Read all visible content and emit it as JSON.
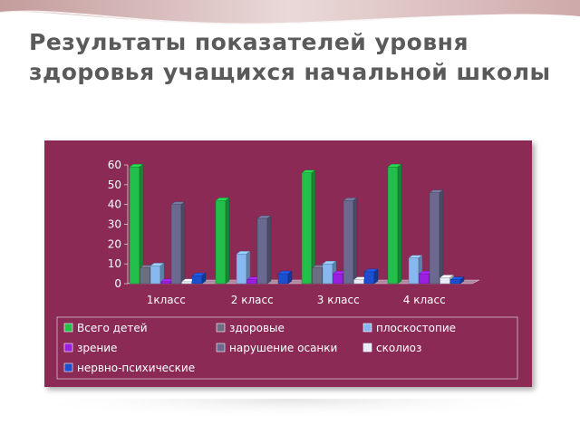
{
  "slide": {
    "title": "Результаты  показателей уровня здоровья учащихся начальной школы"
  },
  "colors": {
    "panel": "#8a2a55",
    "title": "#5a5a5a",
    "legend_bg": "#8a2a55"
  },
  "chart_data": {
    "type": "bar",
    "title": "",
    "xlabel": "",
    "ylabel": "",
    "ylim": [
      0,
      60
    ],
    "yticks": [
      0,
      10,
      20,
      30,
      40,
      50,
      60
    ],
    "grid": false,
    "legend_position": "bottom",
    "categories": [
      "1класс",
      "2 класс",
      "3 класс",
      "4 класс"
    ],
    "series": [
      {
        "name": "Всего детей",
        "color": "#22c04a",
        "values": [
          59,
          42,
          56,
          59
        ]
      },
      {
        "name": "здоровые",
        "color": "#6e6e82",
        "values": [
          8,
          0,
          8,
          0
        ]
      },
      {
        "name": "плоскостопие",
        "color": "#88b8f0",
        "values": [
          9,
          15,
          10,
          13
        ]
      },
      {
        "name": "зрение",
        "color": "#9b1fe0",
        "values": [
          1,
          2,
          5,
          5
        ]
      },
      {
        "name": "нарушение осанки",
        "color": "#6a6a90",
        "values": [
          40,
          33,
          42,
          46
        ]
      },
      {
        "name": "сколиоз",
        "color": "#e8ecf8",
        "values": [
          1,
          0,
          2,
          3
        ]
      },
      {
        "name": "нервно-психические",
        "color": "#1c4fd0",
        "values": [
          4,
          5,
          6,
          2
        ]
      }
    ]
  }
}
